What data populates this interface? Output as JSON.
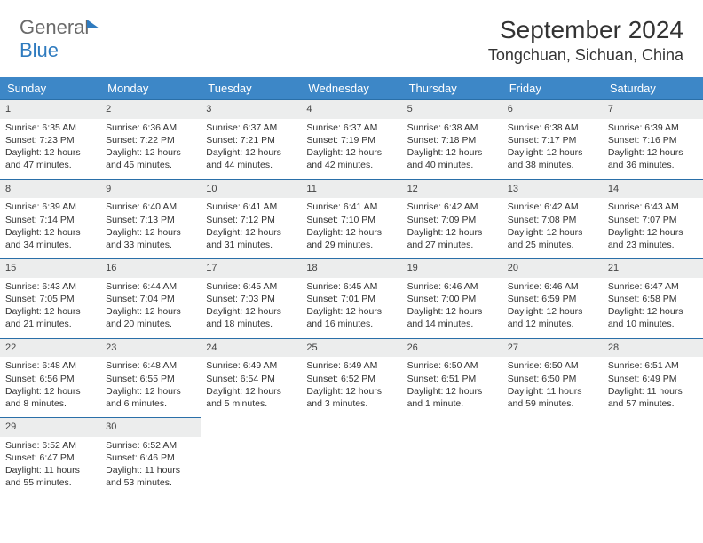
{
  "brand": {
    "part1": "General",
    "part2": "Blue"
  },
  "title": "September 2024",
  "location": "Tongchuan, Sichuan, China",
  "colors": {
    "header_bg": "#3d87c7",
    "header_text": "#ffffff",
    "row_divider": "#2a6fa8",
    "daynum_bg": "#eceded",
    "text": "#333333",
    "logo_gray": "#6a6a6a",
    "logo_blue": "#2f7bbf",
    "background": "#ffffff"
  },
  "weekdays": [
    "Sunday",
    "Monday",
    "Tuesday",
    "Wednesday",
    "Thursday",
    "Friday",
    "Saturday"
  ],
  "days": [
    {
      "n": "1",
      "sunrise": "Sunrise: 6:35 AM",
      "sunset": "Sunset: 7:23 PM",
      "day1": "Daylight: 12 hours",
      "day2": "and 47 minutes."
    },
    {
      "n": "2",
      "sunrise": "Sunrise: 6:36 AM",
      "sunset": "Sunset: 7:22 PM",
      "day1": "Daylight: 12 hours",
      "day2": "and 45 minutes."
    },
    {
      "n": "3",
      "sunrise": "Sunrise: 6:37 AM",
      "sunset": "Sunset: 7:21 PM",
      "day1": "Daylight: 12 hours",
      "day2": "and 44 minutes."
    },
    {
      "n": "4",
      "sunrise": "Sunrise: 6:37 AM",
      "sunset": "Sunset: 7:19 PM",
      "day1": "Daylight: 12 hours",
      "day2": "and 42 minutes."
    },
    {
      "n": "5",
      "sunrise": "Sunrise: 6:38 AM",
      "sunset": "Sunset: 7:18 PM",
      "day1": "Daylight: 12 hours",
      "day2": "and 40 minutes."
    },
    {
      "n": "6",
      "sunrise": "Sunrise: 6:38 AM",
      "sunset": "Sunset: 7:17 PM",
      "day1": "Daylight: 12 hours",
      "day2": "and 38 minutes."
    },
    {
      "n": "7",
      "sunrise": "Sunrise: 6:39 AM",
      "sunset": "Sunset: 7:16 PM",
      "day1": "Daylight: 12 hours",
      "day2": "and 36 minutes."
    },
    {
      "n": "8",
      "sunrise": "Sunrise: 6:39 AM",
      "sunset": "Sunset: 7:14 PM",
      "day1": "Daylight: 12 hours",
      "day2": "and 34 minutes."
    },
    {
      "n": "9",
      "sunrise": "Sunrise: 6:40 AM",
      "sunset": "Sunset: 7:13 PM",
      "day1": "Daylight: 12 hours",
      "day2": "and 33 minutes."
    },
    {
      "n": "10",
      "sunrise": "Sunrise: 6:41 AM",
      "sunset": "Sunset: 7:12 PM",
      "day1": "Daylight: 12 hours",
      "day2": "and 31 minutes."
    },
    {
      "n": "11",
      "sunrise": "Sunrise: 6:41 AM",
      "sunset": "Sunset: 7:10 PM",
      "day1": "Daylight: 12 hours",
      "day2": "and 29 minutes."
    },
    {
      "n": "12",
      "sunrise": "Sunrise: 6:42 AM",
      "sunset": "Sunset: 7:09 PM",
      "day1": "Daylight: 12 hours",
      "day2": "and 27 minutes."
    },
    {
      "n": "13",
      "sunrise": "Sunrise: 6:42 AM",
      "sunset": "Sunset: 7:08 PM",
      "day1": "Daylight: 12 hours",
      "day2": "and 25 minutes."
    },
    {
      "n": "14",
      "sunrise": "Sunrise: 6:43 AM",
      "sunset": "Sunset: 7:07 PM",
      "day1": "Daylight: 12 hours",
      "day2": "and 23 minutes."
    },
    {
      "n": "15",
      "sunrise": "Sunrise: 6:43 AM",
      "sunset": "Sunset: 7:05 PM",
      "day1": "Daylight: 12 hours",
      "day2": "and 21 minutes."
    },
    {
      "n": "16",
      "sunrise": "Sunrise: 6:44 AM",
      "sunset": "Sunset: 7:04 PM",
      "day1": "Daylight: 12 hours",
      "day2": "and 20 minutes."
    },
    {
      "n": "17",
      "sunrise": "Sunrise: 6:45 AM",
      "sunset": "Sunset: 7:03 PM",
      "day1": "Daylight: 12 hours",
      "day2": "and 18 minutes."
    },
    {
      "n": "18",
      "sunrise": "Sunrise: 6:45 AM",
      "sunset": "Sunset: 7:01 PM",
      "day1": "Daylight: 12 hours",
      "day2": "and 16 minutes."
    },
    {
      "n": "19",
      "sunrise": "Sunrise: 6:46 AM",
      "sunset": "Sunset: 7:00 PM",
      "day1": "Daylight: 12 hours",
      "day2": "and 14 minutes."
    },
    {
      "n": "20",
      "sunrise": "Sunrise: 6:46 AM",
      "sunset": "Sunset: 6:59 PM",
      "day1": "Daylight: 12 hours",
      "day2": "and 12 minutes."
    },
    {
      "n": "21",
      "sunrise": "Sunrise: 6:47 AM",
      "sunset": "Sunset: 6:58 PM",
      "day1": "Daylight: 12 hours",
      "day2": "and 10 minutes."
    },
    {
      "n": "22",
      "sunrise": "Sunrise: 6:48 AM",
      "sunset": "Sunset: 6:56 PM",
      "day1": "Daylight: 12 hours",
      "day2": "and 8 minutes."
    },
    {
      "n": "23",
      "sunrise": "Sunrise: 6:48 AM",
      "sunset": "Sunset: 6:55 PM",
      "day1": "Daylight: 12 hours",
      "day2": "and 6 minutes."
    },
    {
      "n": "24",
      "sunrise": "Sunrise: 6:49 AM",
      "sunset": "Sunset: 6:54 PM",
      "day1": "Daylight: 12 hours",
      "day2": "and 5 minutes."
    },
    {
      "n": "25",
      "sunrise": "Sunrise: 6:49 AM",
      "sunset": "Sunset: 6:52 PM",
      "day1": "Daylight: 12 hours",
      "day2": "and 3 minutes."
    },
    {
      "n": "26",
      "sunrise": "Sunrise: 6:50 AM",
      "sunset": "Sunset: 6:51 PM",
      "day1": "Daylight: 12 hours",
      "day2": "and 1 minute."
    },
    {
      "n": "27",
      "sunrise": "Sunrise: 6:50 AM",
      "sunset": "Sunset: 6:50 PM",
      "day1": "Daylight: 11 hours",
      "day2": "and 59 minutes."
    },
    {
      "n": "28",
      "sunrise": "Sunrise: 6:51 AM",
      "sunset": "Sunset: 6:49 PM",
      "day1": "Daylight: 11 hours",
      "day2": "and 57 minutes."
    },
    {
      "n": "29",
      "sunrise": "Sunrise: 6:52 AM",
      "sunset": "Sunset: 6:47 PM",
      "day1": "Daylight: 11 hours",
      "day2": "and 55 minutes."
    },
    {
      "n": "30",
      "sunrise": "Sunrise: 6:52 AM",
      "sunset": "Sunset: 6:46 PM",
      "day1": "Daylight: 11 hours",
      "day2": "and 53 minutes."
    }
  ]
}
